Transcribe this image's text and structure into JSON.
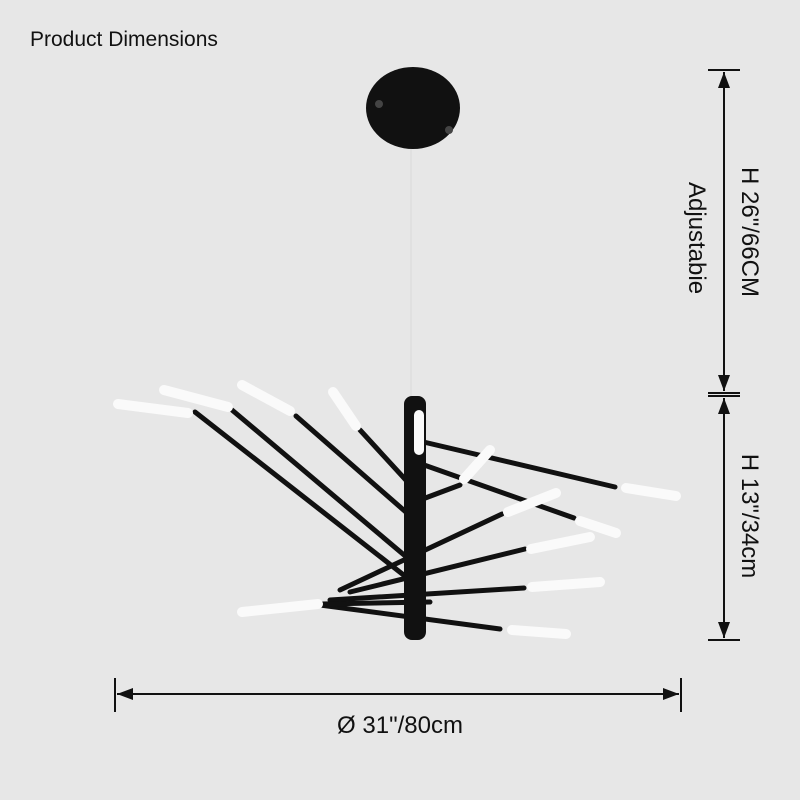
{
  "header": {
    "title": "Product Dimensions"
  },
  "dimensions": {
    "total_height": "H 26\"/66CM",
    "adjustable_note": "Adjustabie",
    "body_height": "H 13\"/34cm",
    "diameter": "Ø 31\"/80cm"
  }
}
